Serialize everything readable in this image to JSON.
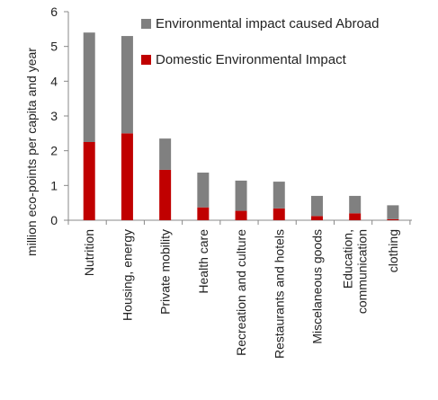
{
  "chart_data": {
    "type": "bar",
    "stacked": true,
    "categories": [
      [
        "Nutrition"
      ],
      [
        "Housing, energy"
      ],
      [
        "Private mobility"
      ],
      [
        "Health care"
      ],
      [
        "Recreation and culture"
      ],
      [
        "Restaurants and hotels"
      ],
      [
        "Miscelaneous goods"
      ],
      [
        "Education,",
        "communication"
      ],
      [
        "clothing"
      ]
    ],
    "series": [
      {
        "name": "Domestic Environmental Impact",
        "color": "#c00000",
        "values": [
          2.25,
          2.5,
          1.45,
          0.37,
          0.27,
          0.34,
          0.12,
          0.2,
          0.03
        ]
      },
      {
        "name": "Environmental impact caused Abroad",
        "color": "#808080",
        "values": [
          3.15,
          2.8,
          0.9,
          1.0,
          0.87,
          0.77,
          0.58,
          0.5,
          0.4
        ]
      }
    ],
    "ylabel": "million eco-points per capita and year",
    "ylim": [
      0,
      6
    ],
    "yticks": [
      0,
      1,
      2,
      3,
      4,
      5,
      6
    ],
    "grid": false,
    "legend": {
      "placement": "top-right",
      "entries": [
        {
          "label": "Environmental impact caused Abroad",
          "color": "#808080"
        },
        {
          "label": "Domestic Environmental Impact",
          "color": "#c00000"
        }
      ]
    }
  }
}
